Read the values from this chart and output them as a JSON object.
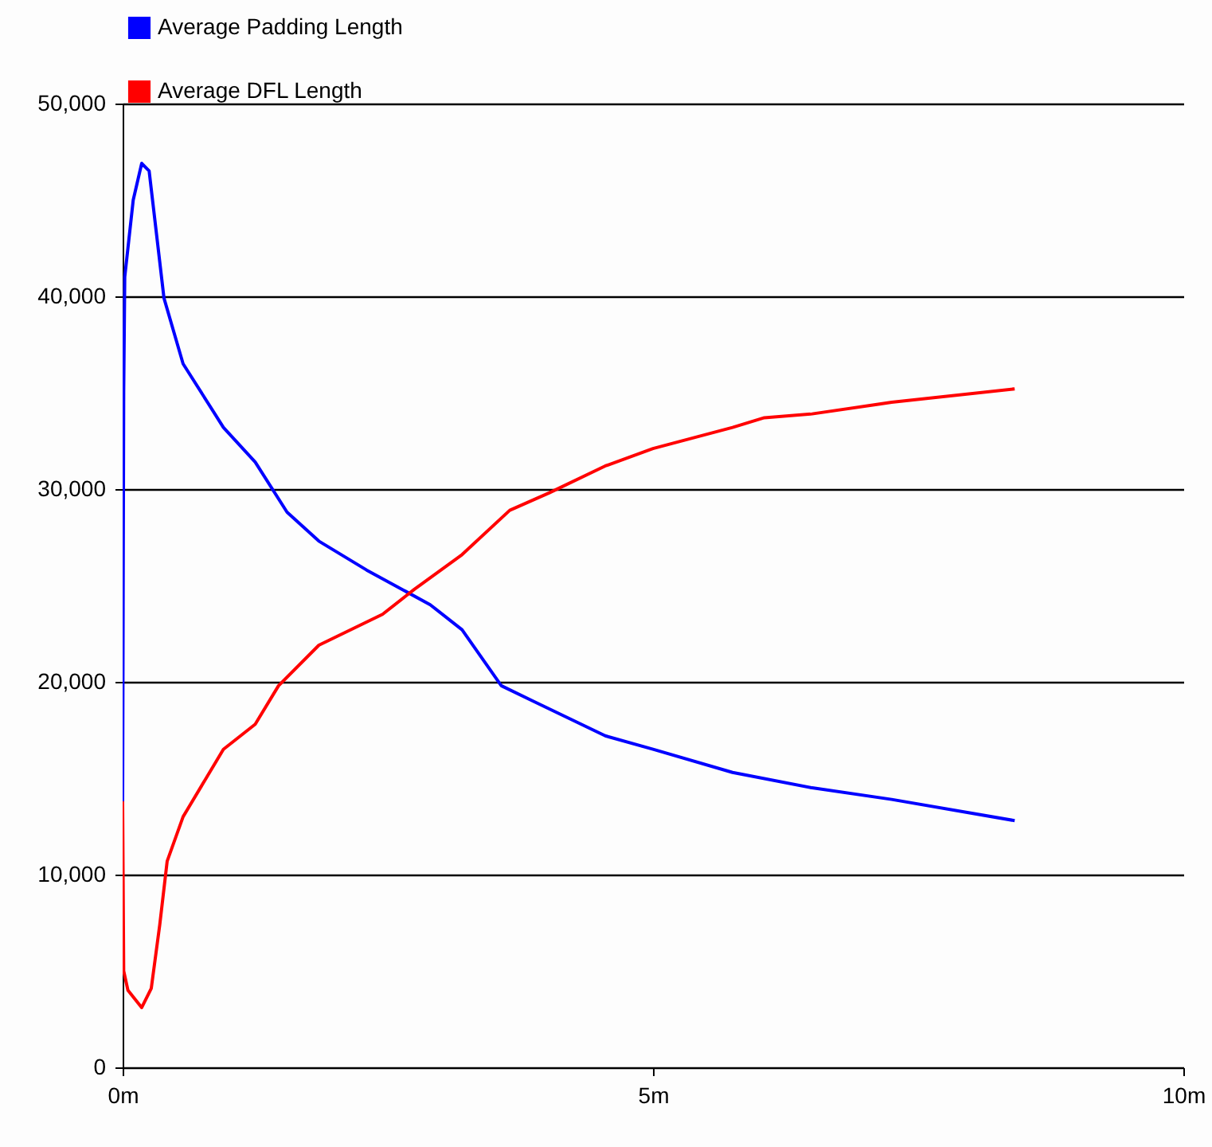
{
  "chart_data": {
    "type": "line",
    "legend": "top left",
    "grid": "y",
    "xlim": [
      0,
      10
    ],
    "xticks": [
      {
        "value": 0,
        "label": "0m"
      },
      {
        "value": 5,
        "label": "5m"
      },
      {
        "value": 10,
        "label": "10m"
      }
    ],
    "ylim": [
      0,
      50000
    ],
    "yticks": [
      {
        "value": 0,
        "label": "0"
      },
      {
        "value": 10000,
        "label": "10,000"
      },
      {
        "value": 20000,
        "label": "20,000"
      },
      {
        "value": 30000,
        "label": "30,000"
      },
      {
        "value": 40000,
        "label": "40,000"
      },
      {
        "value": 50000,
        "label": "50,000"
      }
    ],
    "x": [
      0,
      0.01,
      0.02,
      0.1,
      0.18,
      0.25,
      0.39,
      0.57,
      0.95,
      1.25,
      1.55,
      1.85,
      2.3,
      2.9,
      3.2,
      3.57,
      3.87,
      4.55,
      5.0,
      5.75,
      6.5,
      7.25,
      8.41
    ],
    "series": [
      {
        "name": "Average Padding Length",
        "color": "#0000ff",
        "values": [
          13700,
          35000,
          41000,
          45000,
          46900,
          46500,
          39900,
          36500,
          33200,
          31400,
          28800,
          27300,
          25800,
          24000,
          22700,
          19800,
          19000,
          17200,
          16500,
          15300,
          14500,
          13900,
          12800
        ]
      },
      {
        "name": "Average DFL Length",
        "color": "#ff0000",
        "x": [
          0,
          0.01,
          0.05,
          0.18,
          0.27,
          0.35,
          0.42,
          0.57,
          0.95,
          1.25,
          1.47,
          1.85,
          2.45,
          2.75,
          3.2,
          3.65,
          4.02,
          4.55,
          5.0,
          5.75,
          6.05,
          6.5,
          7.25,
          8.41
        ],
        "values": [
          13800,
          5000,
          4000,
          3100,
          4100,
          7400,
          10700,
          13000,
          16500,
          17800,
          19800,
          21900,
          23500,
          24800,
          26600,
          28900,
          29800,
          31200,
          32100,
          33200,
          33700,
          33900,
          34500,
          35200
        ]
      }
    ]
  }
}
